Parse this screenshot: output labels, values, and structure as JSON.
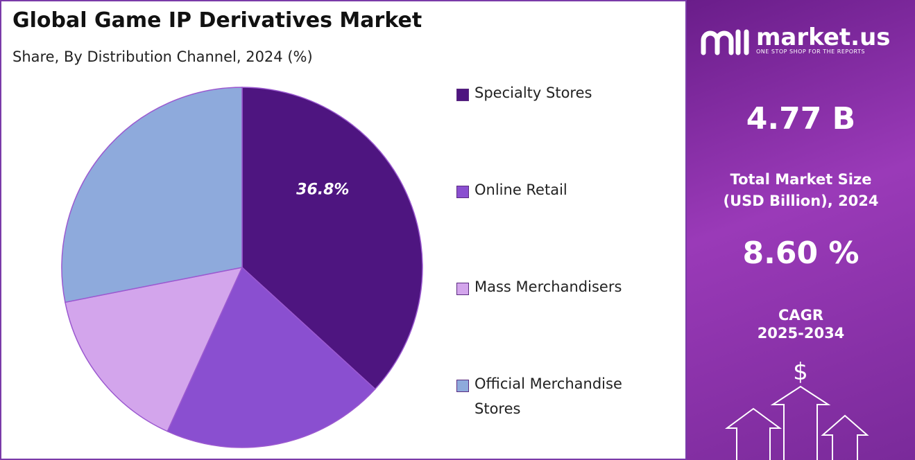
{
  "chart_data": {
    "type": "pie",
    "title": "Global Game IP Derivatives Market",
    "subtitle": "Share, By Distribution Channel, 2024 (%)",
    "categories": [
      "Specialty Stores",
      "Online Retail",
      "Mass Merchandisers",
      "Official Merchandise Stores"
    ],
    "values": [
      36.8,
      20.0,
      15.1,
      28.1
    ],
    "value_labels": [
      "36.8%",
      null,
      null,
      null
    ],
    "colors": [
      "#4e1580",
      "#8a4fd0",
      "#d3a5ec",
      "#8eaadc"
    ]
  },
  "panel": {
    "brand": "market.us",
    "tagline": "ONE STOP SHOP FOR THE REPORTS",
    "market_size": "4.77 B",
    "market_size_label": [
      "Total Market Size",
      "(USD Billion), 2024"
    ],
    "cagr": "8.60 %",
    "cagr_label": [
      "CAGR",
      "2025-2034"
    ]
  }
}
